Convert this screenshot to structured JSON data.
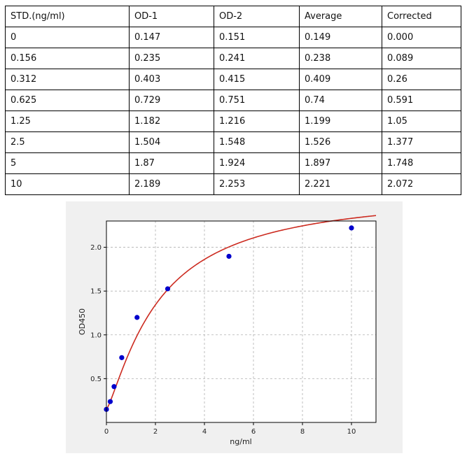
{
  "table": {
    "headers": [
      "STD.(ng/ml)",
      "OD-1",
      "OD-2",
      "Average",
      "Corrected"
    ],
    "rows": [
      [
        "0",
        "0.147",
        "0.151",
        "0.149",
        "0.000"
      ],
      [
        "0.156",
        "0.235",
        "0.241",
        "0.238",
        "0.089"
      ],
      [
        "0.312",
        "0.403",
        "0.415",
        "0.409",
        "0.26"
      ],
      [
        "0.625",
        "0.729",
        "0.751",
        "0.74",
        "0.591"
      ],
      [
        "1.25",
        "1.182",
        "1.216",
        "1.199",
        "1.05"
      ],
      [
        "2.5",
        "1.504",
        "1.548",
        "1.526",
        "1.377"
      ],
      [
        "5",
        "1.87",
        "1.924",
        "1.897",
        "1.748"
      ],
      [
        "10",
        "2.189",
        "2.253",
        "2.221",
        "2.072"
      ]
    ]
  },
  "chart_data": {
    "type": "scatter",
    "title": "",
    "xlabel": "ng/ml",
    "ylabel": "OD450",
    "xlim": [
      0,
      11
    ],
    "ylim": [
      0.0,
      2.3
    ],
    "xticks": [
      0,
      2,
      4,
      6,
      8,
      10
    ],
    "yticks": [
      0.5,
      1.0,
      1.5,
      2.0
    ],
    "ytick_labels": [
      "0.5",
      "1.0",
      "1.5",
      "2.0"
    ],
    "grid": true,
    "series": [
      {
        "kind": "scatter",
        "color": "#0000cc",
        "x": [
          0,
          0.156,
          0.312,
          0.625,
          1.25,
          2.5,
          5,
          10
        ],
        "y": [
          0.149,
          0.238,
          0.409,
          0.74,
          1.199,
          1.526,
          1.897,
          2.221
        ]
      },
      {
        "kind": "line",
        "color": "#cc2a1f",
        "fit": {
          "model": "4PL",
          "A": 0.149,
          "B": 1.25,
          "C": 2.15,
          "D": 2.65
        }
      }
    ]
  }
}
